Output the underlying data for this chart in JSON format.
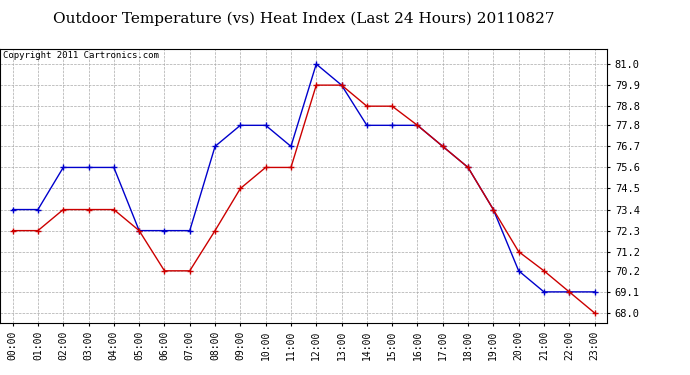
{
  "title": "Outdoor Temperature (vs) Heat Index (Last 24 Hours) 20110827",
  "copyright": "Copyright 2011 Cartronics.com",
  "x_labels": [
    "00:00",
    "01:00",
    "02:00",
    "03:00",
    "04:00",
    "05:00",
    "06:00",
    "07:00",
    "08:00",
    "09:00",
    "10:00",
    "11:00",
    "12:00",
    "13:00",
    "14:00",
    "15:00",
    "16:00",
    "17:00",
    "18:00",
    "19:00",
    "20:00",
    "21:00",
    "22:00",
    "23:00"
  ],
  "y_ticks": [
    68.0,
    69.1,
    70.2,
    71.2,
    72.3,
    73.4,
    74.5,
    75.6,
    76.7,
    77.8,
    78.8,
    79.9,
    81.0
  ],
  "y_min": 67.5,
  "y_max": 81.8,
  "blue_data": [
    73.4,
    73.4,
    75.6,
    75.6,
    75.6,
    72.3,
    72.3,
    72.3,
    76.7,
    77.8,
    77.8,
    76.7,
    81.0,
    79.9,
    77.8,
    77.8,
    77.8,
    76.7,
    75.6,
    73.4,
    70.2,
    69.1,
    69.1,
    69.1
  ],
  "red_data": [
    72.3,
    72.3,
    73.4,
    73.4,
    73.4,
    72.3,
    70.2,
    70.2,
    72.3,
    74.5,
    75.6,
    75.6,
    79.9,
    79.9,
    78.8,
    78.8,
    77.8,
    76.7,
    75.6,
    73.4,
    71.2,
    70.2,
    69.1,
    68.0
  ],
  "blue_color": "#0000cc",
  "red_color": "#cc0000",
  "bg_color": "#ffffff",
  "grid_color": "#aaaaaa",
  "title_fontsize": 11,
  "copyright_fontsize": 6.5,
  "tick_fontsize": 7,
  "ytick_fontsize": 7.5
}
